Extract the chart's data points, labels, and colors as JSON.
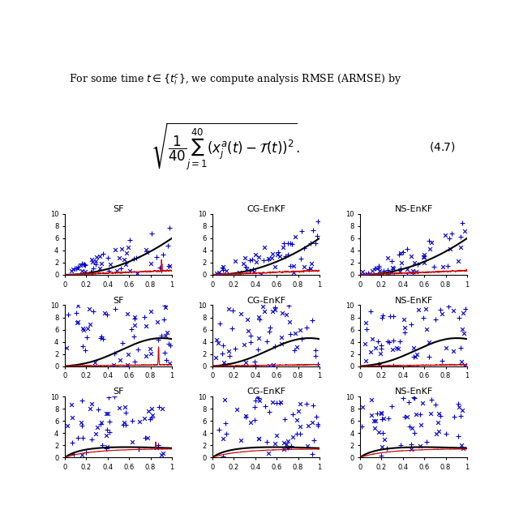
{
  "titles": [
    "SF",
    "CG-EnKF",
    "NS-EnKF"
  ],
  "background_color": "#ffffff",
  "scatter_color": "#0000cc",
  "black_curve_color": "#000000",
  "red_curve_color": "#cc0000",
  "ylim": [
    0,
    10
  ],
  "xlim": [
    0,
    1
  ],
  "yticks": [
    0,
    2,
    4,
    6,
    8,
    10
  ],
  "xticks": [
    0,
    0.2,
    0.4,
    0.6,
    0.8,
    1.0
  ]
}
